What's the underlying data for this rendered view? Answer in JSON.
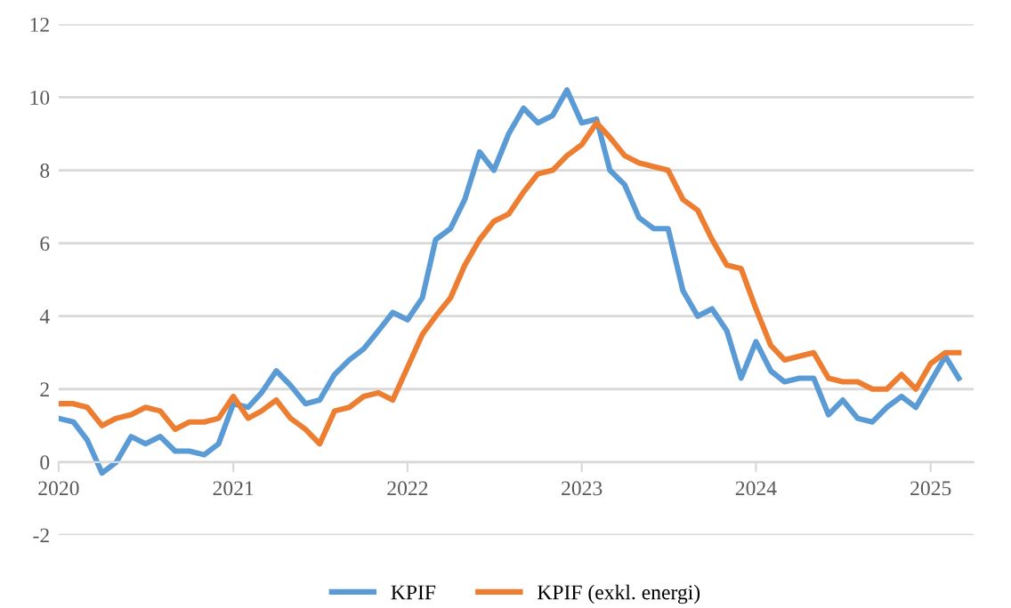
{
  "chart_data": {
    "type": "line",
    "x": [
      "2020-01",
      "2020-02",
      "2020-03",
      "2020-04",
      "2020-05",
      "2020-06",
      "2020-07",
      "2020-08",
      "2020-09",
      "2020-10",
      "2020-11",
      "2020-12",
      "2021-01",
      "2021-02",
      "2021-03",
      "2021-04",
      "2021-05",
      "2021-06",
      "2021-07",
      "2021-08",
      "2021-09",
      "2021-10",
      "2021-11",
      "2021-12",
      "2022-01",
      "2022-02",
      "2022-03",
      "2022-04",
      "2022-05",
      "2022-06",
      "2022-07",
      "2022-08",
      "2022-09",
      "2022-10",
      "2022-11",
      "2022-12",
      "2023-01",
      "2023-02",
      "2023-03",
      "2023-04",
      "2023-05",
      "2023-06",
      "2023-07",
      "2023-08",
      "2023-09",
      "2023-10",
      "2023-11",
      "2023-12",
      "2024-01",
      "2024-02",
      "2024-03",
      "2024-04",
      "2024-05",
      "2024-06",
      "2024-07",
      "2024-08",
      "2024-09",
      "2024-10",
      "2024-11",
      "2024-12",
      "2025-01",
      "2025-02",
      "2025-03"
    ],
    "series": [
      {
        "name": "KPIF",
        "color": "#5b9bd5",
        "values": [
          1.2,
          1.1,
          0.6,
          -0.3,
          0.0,
          0.7,
          0.5,
          0.7,
          0.3,
          0.3,
          0.2,
          0.5,
          1.6,
          1.5,
          1.9,
          2.5,
          2.1,
          1.6,
          1.7,
          2.4,
          2.8,
          3.1,
          3.6,
          4.1,
          3.9,
          4.5,
          6.1,
          6.4,
          7.2,
          8.5,
          8.0,
          9.0,
          9.7,
          9.3,
          9.5,
          10.2,
          9.3,
          9.4,
          8.0,
          7.6,
          6.7,
          6.4,
          6.4,
          4.7,
          4.0,
          4.2,
          3.6,
          2.3,
          3.3,
          2.5,
          2.2,
          2.3,
          2.3,
          1.3,
          1.7,
          1.2,
          1.1,
          1.5,
          1.8,
          1.5,
          2.2,
          2.9,
          2.3
        ]
      },
      {
        "name": "KPIF (exkl. energi)",
        "color": "#ed7d31",
        "values": [
          1.6,
          1.6,
          1.5,
          1.0,
          1.2,
          1.3,
          1.5,
          1.4,
          0.9,
          1.1,
          1.1,
          1.2,
          1.8,
          1.2,
          1.4,
          1.7,
          1.2,
          0.9,
          0.5,
          1.4,
          1.5,
          1.8,
          1.9,
          1.7,
          2.6,
          3.5,
          4.0,
          4.5,
          5.4,
          6.1,
          6.6,
          6.8,
          7.4,
          7.9,
          8.0,
          8.4,
          8.7,
          9.3,
          8.9,
          8.4,
          8.2,
          8.1,
          8.0,
          7.2,
          6.9,
          6.1,
          5.4,
          5.3,
          4.2,
          3.2,
          2.8,
          2.9,
          3.0,
          2.3,
          2.2,
          2.2,
          2.0,
          2.0,
          2.4,
          2.0,
          2.7,
          3.0,
          3.0
        ]
      }
    ],
    "xlim": [
      "2020-01",
      "2025-04"
    ],
    "xticks": [
      {
        "value": "2020-01",
        "label": "2020"
      },
      {
        "value": "2021-01",
        "label": "2021"
      },
      {
        "value": "2022-01",
        "label": "2022"
      },
      {
        "value": "2023-01",
        "label": "2023"
      },
      {
        "value": "2024-01",
        "label": "2024"
      },
      {
        "value": "2025-01",
        "label": "2025"
      }
    ],
    "ylim": [
      -2,
      12
    ],
    "yticks": [
      -2,
      0,
      2,
      4,
      6,
      8,
      10,
      12
    ],
    "grid": "y",
    "legend": "bottom",
    "marker": "none",
    "line_style": "solid"
  }
}
